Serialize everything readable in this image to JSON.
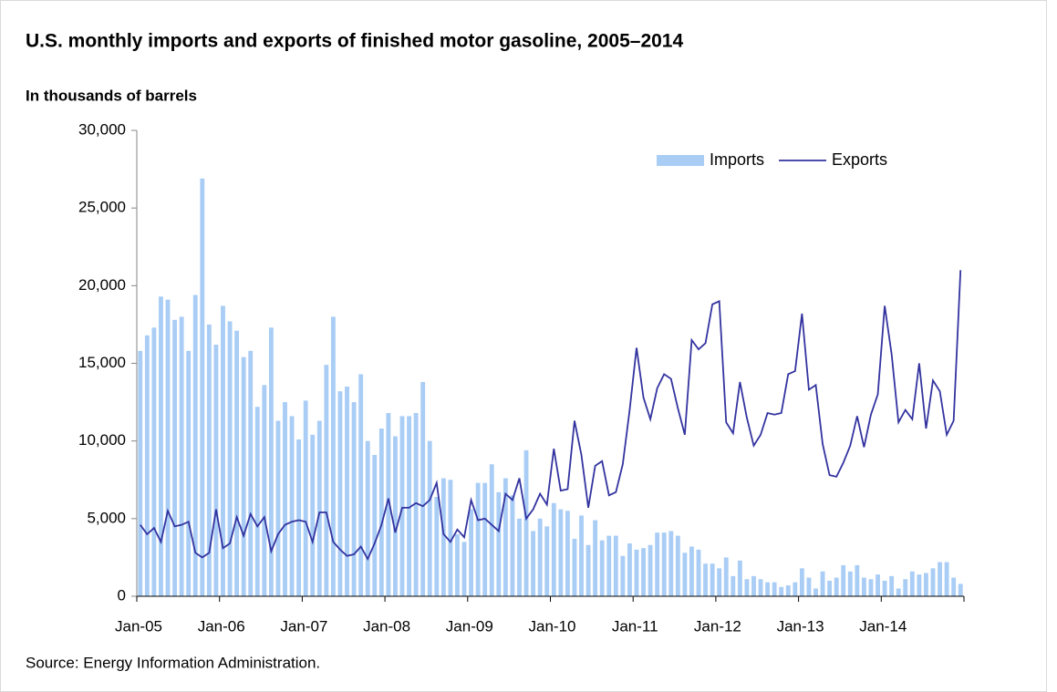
{
  "chart_data": {
    "type": "bar_line",
    "title": "U.S. monthly imports and exports of finished motor gasoline, 2005–2014",
    "subtitle": "In thousands of barrels",
    "source": "Source: Energy Information Administration.",
    "categories": [
      "Jan-05",
      null,
      null,
      null,
      null,
      null,
      null,
      null,
      null,
      null,
      null,
      null,
      "Jan-06",
      null,
      null,
      null,
      null,
      null,
      null,
      null,
      null,
      null,
      null,
      null,
      "Jan-07",
      null,
      null,
      null,
      null,
      null,
      null,
      null,
      null,
      null,
      null,
      null,
      "Jan-08",
      null,
      null,
      null,
      null,
      null,
      null,
      null,
      null,
      null,
      null,
      null,
      "Jan-09",
      null,
      null,
      null,
      null,
      null,
      null,
      null,
      null,
      null,
      null,
      null,
      "Jan-10",
      null,
      null,
      null,
      null,
      null,
      null,
      null,
      null,
      null,
      null,
      null,
      "Jan-11",
      null,
      null,
      null,
      null,
      null,
      null,
      null,
      null,
      null,
      null,
      null,
      "Jan-12",
      null,
      null,
      null,
      null,
      null,
      null,
      null,
      null,
      null,
      null,
      null,
      "Jan-13",
      null,
      null,
      null,
      null,
      null,
      null,
      null,
      null,
      null,
      null,
      null,
      "Jan-14",
      null,
      null,
      null,
      null,
      null,
      null,
      null,
      null,
      null,
      null,
      null
    ],
    "series": [
      {
        "name": "Imports",
        "type": "bar",
        "color": "#a9cdf5",
        "values": [
          15800,
          16800,
          17300,
          19300,
          19100,
          17800,
          18000,
          15800,
          19400,
          26900,
          17500,
          16200,
          18700,
          17700,
          17100,
          15400,
          15800,
          12200,
          13600,
          17300,
          11300,
          12500,
          11600,
          10100,
          12600,
          10400,
          11300,
          14900,
          18000,
          13200,
          13500,
          12500,
          14300,
          10000,
          9100,
          10800,
          11800,
          10300,
          11600,
          11600,
          11800,
          13800,
          10000,
          6400,
          7600,
          7500,
          4000,
          3500,
          5600,
          7300,
          7300,
          8500,
          6700,
          7600,
          6500,
          5000,
          9400,
          4200,
          5000,
          4500,
          6000,
          5600,
          5500,
          3700,
          5200,
          3300,
          4900,
          3600,
          3900,
          3900,
          2600,
          3400,
          3000,
          3100,
          3300,
          4100,
          4100,
          4200,
          3900,
          2800,
          3200,
          3000,
          2100,
          2100,
          1800,
          2500,
          1300,
          2300,
          1100,
          1300,
          1100,
          900,
          900,
          600,
          700,
          900,
          1800,
          1200,
          500,
          1600,
          1000,
          1200,
          2000,
          1600,
          2000,
          1200,
          1100,
          1400,
          1000,
          1300,
          500,
          1100,
          1600,
          1400,
          1500,
          1800,
          2200,
          2200,
          1200,
          800
        ]
      },
      {
        "name": "Exports",
        "type": "line",
        "color": "#3333a0",
        "values": [
          4600,
          4000,
          4400,
          3500,
          5500,
          4500,
          4600,
          4800,
          2800,
          2500,
          2800,
          5600,
          3100,
          3400,
          5100,
          3900,
          5300,
          4500,
          5100,
          2900,
          4000,
          4600,
          4800,
          4900,
          4800,
          3500,
          5400,
          5400,
          3500,
          3000,
          2600,
          2700,
          3200,
          2400,
          3400,
          4600,
          6300,
          4100,
          5700,
          5700,
          6000,
          5800,
          6200,
          7300,
          4000,
          3500,
          4300,
          3800,
          6200,
          4900,
          5000,
          4600,
          4200,
          6600,
          6200,
          7600,
          5000,
          5600,
          6600,
          5900,
          9500,
          6800,
          6900,
          11300,
          9100,
          5700,
          8400,
          8700,
          6500,
          6700,
          8500,
          12000,
          16000,
          12800,
          11400,
          13400,
          14300,
          14000,
          12100,
          10400,
          16500,
          15900,
          16300,
          18800,
          19000,
          11200,
          10500,
          13800,
          11500,
          9700,
          10400,
          11800,
          11700,
          11800,
          14300,
          14500,
          18200,
          13300,
          13600,
          9800,
          7800,
          7700,
          8600,
          9700,
          11600,
          9600,
          11700,
          13000,
          18700,
          15600,
          11200,
          12000,
          11400,
          15000,
          10800,
          13900,
          13200,
          10400,
          11300,
          21000
        ]
      }
    ],
    "ylim": [
      0,
      30000
    ],
    "yticks": [
      0,
      {
        "value": 5000,
        "label": "5,000"
      },
      {
        "value": 10000,
        "label": "10,000"
      },
      {
        "value": 15000,
        "label": "15,000"
      },
      {
        "value": 20000,
        "label": "20,000"
      },
      {
        "value": 25000,
        "label": "25,000"
      },
      {
        "value": 30000,
        "label": "30,000"
      }
    ],
    "grid": false,
    "legend": "upper right"
  }
}
